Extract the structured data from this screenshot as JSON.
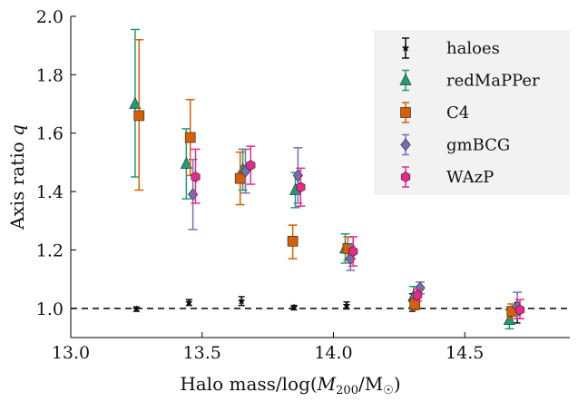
{
  "chart_data": {
    "type": "scatter",
    "xlabel_prefix": "Halo mass/log(",
    "xlabel_var": "M",
    "xlabel_sub": "200",
    "xlabel_mid": "/M",
    "xlabel_sun": "☉",
    "xlabel_suffix": ")",
    "ylabel_prefix": "Axis ratio ",
    "ylabel_var": "q",
    "xlim": [
      13.0,
      14.9
    ],
    "ylim": [
      0.9,
      2.0
    ],
    "xticks": [
      13.0,
      13.5,
      14.0,
      14.5
    ],
    "xtick_labels": [
      "13.0",
      "13.5",
      "14.0",
      "14.5"
    ],
    "yticks": [
      1.0,
      1.2,
      1.4,
      1.6,
      1.8,
      2.0
    ],
    "ytick_labels": [
      "1.0",
      "1.2",
      "1.4",
      "1.6",
      "1.8",
      "2.0"
    ],
    "reference_line": 1.0,
    "legend_position": "top-right",
    "series": [
      {
        "name": "haloes",
        "color": "#111111",
        "marker": "star",
        "points": [
          {
            "x": 13.25,
            "y": 0.997,
            "lo": 0.99,
            "hi": 1.005
          },
          {
            "x": 13.45,
            "y": 1.02,
            "lo": 1.01,
            "hi": 1.03
          },
          {
            "x": 13.65,
            "y": 1.025,
            "lo": 1.01,
            "hi": 1.04
          },
          {
            "x": 13.85,
            "y": 1.003,
            "lo": 0.995,
            "hi": 1.01
          },
          {
            "x": 14.05,
            "y": 1.01,
            "lo": 0.998,
            "hi": 1.022
          },
          {
            "x": 14.3,
            "y": 1.02,
            "lo": 0.99,
            "hi": 1.05
          },
          {
            "x": 14.7,
            "y": 0.985,
            "lo": 0.95,
            "hi": 1.02
          }
        ]
      },
      {
        "name": "redMaPPer",
        "color": "#1b9e77",
        "marker": "triangle",
        "points": [
          {
            "x": 13.245,
            "y": 1.7,
            "lo": 1.45,
            "hi": 1.955
          },
          {
            "x": 13.44,
            "y": 1.495,
            "lo": 1.375,
            "hi": 1.615
          },
          {
            "x": 13.655,
            "y": 1.475,
            "lo": 1.405,
            "hi": 1.545
          },
          {
            "x": 13.855,
            "y": 1.405,
            "lo": 1.345,
            "hi": 1.465
          },
          {
            "x": 14.045,
            "y": 1.205,
            "lo": 1.155,
            "hi": 1.255
          },
          {
            "x": 14.305,
            "y": 1.04,
            "lo": 1.005,
            "hi": 1.075
          },
          {
            "x": 14.67,
            "y": 0.96,
            "lo": 0.93,
            "hi": 0.995
          }
        ]
      },
      {
        "name": "C4",
        "color": "#d95f02",
        "marker": "square",
        "points": [
          {
            "x": 13.26,
            "y": 1.66,
            "lo": 1.405,
            "hi": 1.92
          },
          {
            "x": 13.455,
            "y": 1.585,
            "lo": 1.455,
            "hi": 1.715
          },
          {
            "x": 13.645,
            "y": 1.445,
            "lo": 1.355,
            "hi": 1.535
          },
          {
            "x": 13.845,
            "y": 1.23,
            "lo": 1.17,
            "hi": 1.285
          },
          {
            "x": 14.055,
            "y": 1.205,
            "lo": 1.165,
            "hi": 1.245
          },
          {
            "x": 14.31,
            "y": 1.015,
            "lo": 0.995,
            "hi": 1.035
          },
          {
            "x": 14.68,
            "y": 0.99,
            "lo": 0.965,
            "hi": 1.015
          }
        ]
      },
      {
        "name": "gmBCG",
        "color": "#7570b3",
        "marker": "diamond",
        "points": [
          {
            "x": 13.465,
            "y": 1.39,
            "lo": 1.27,
            "hi": 1.51
          },
          {
            "x": 13.665,
            "y": 1.47,
            "lo": 1.395,
            "hi": 1.545
          },
          {
            "x": 13.865,
            "y": 1.455,
            "lo": 1.36,
            "hi": 1.55
          },
          {
            "x": 14.065,
            "y": 1.17,
            "lo": 1.13,
            "hi": 1.215
          },
          {
            "x": 14.33,
            "y": 1.07,
            "lo": 1.05,
            "hi": 1.09
          },
          {
            "x": 14.7,
            "y": 1.005,
            "lo": 0.965,
            "hi": 1.055
          }
        ]
      },
      {
        "name": "WAzP",
        "color": "#e7298a",
        "marker": "hexagon",
        "points": [
          {
            "x": 13.475,
            "y": 1.45,
            "lo": 1.36,
            "hi": 1.545
          },
          {
            "x": 13.685,
            "y": 1.49,
            "lo": 1.425,
            "hi": 1.555
          },
          {
            "x": 13.875,
            "y": 1.415,
            "lo": 1.35,
            "hi": 1.48
          },
          {
            "x": 14.075,
            "y": 1.195,
            "lo": 1.145,
            "hi": 1.245
          },
          {
            "x": 14.32,
            "y": 1.045,
            "lo": 1.025,
            "hi": 1.065
          },
          {
            "x": 14.71,
            "y": 0.995,
            "lo": 0.965,
            "hi": 1.03
          }
        ]
      }
    ]
  }
}
